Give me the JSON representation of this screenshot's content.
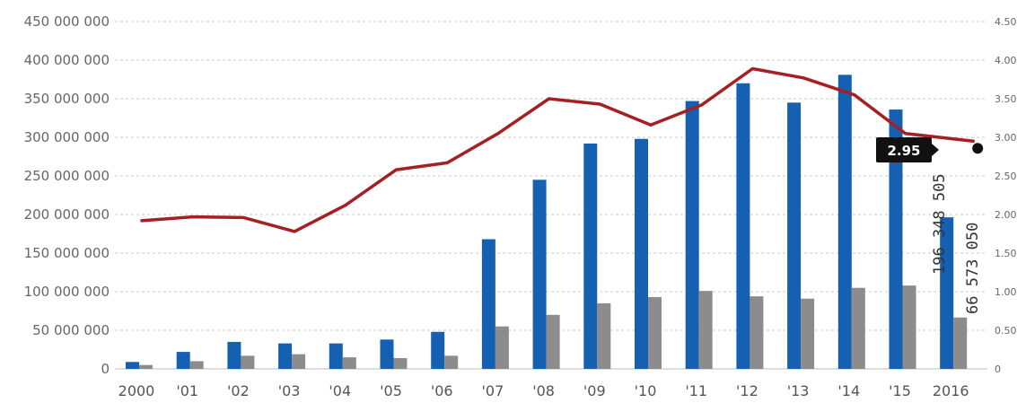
{
  "colors": {
    "series_a": "#1560b0",
    "series_b": "#8c8c8c",
    "line": "#a61f23",
    "grid": "#c9c9c9",
    "callout_bg": "#111111"
  },
  "chart_data": {
    "type": "bar",
    "categories": [
      "2000",
      "'01",
      "'02",
      "'03",
      "'04",
      "'05",
      "'06",
      "'07",
      "'08",
      "'09",
      "'10",
      "'11",
      "'12",
      "'13",
      "'14",
      "'15",
      "2016"
    ],
    "ylim": [
      0,
      450000000
    ],
    "y2lim": [
      0,
      4.5
    ],
    "yticks": [
      "0",
      "50 000 000",
      "100 000 000",
      "150 000 000",
      "200 000 000",
      "250 000 000",
      "300 000 000",
      "350 000 000",
      "400 000 000",
      "450 000 000"
    ],
    "y2ticks": [
      "0",
      "0.50",
      "1.00",
      "1.50",
      "2.00",
      "2.50",
      "3.00",
      "3.50",
      "4.00",
      "4.50"
    ],
    "grid": true,
    "series": [
      {
        "type": "bar",
        "axis": "left",
        "values": [
          9000000,
          22000000,
          35000000,
          33000000,
          33000000,
          38000000,
          48000000,
          168000000,
          245000000,
          292000000,
          298000000,
          347000000,
          370000000,
          345000000,
          381000000,
          336000000,
          196348505
        ]
      },
      {
        "type": "bar",
        "axis": "left",
        "values": [
          5000000,
          10000000,
          17000000,
          19000000,
          15000000,
          14000000,
          17000000,
          55000000,
          70000000,
          85000000,
          93000000,
          101000000,
          94000000,
          91000000,
          105000000,
          108000000,
          66573050
        ]
      },
      {
        "type": "line",
        "axis": "right",
        "values": [
          1.92,
          1.97,
          1.96,
          1.78,
          2.12,
          2.58,
          2.67,
          3.05,
          3.5,
          3.43,
          3.16,
          3.42,
          3.89,
          3.77,
          3.55,
          3.05,
          2.95
        ]
      }
    ],
    "annotations": {
      "bar_a_last": "196 348 505",
      "bar_b_last": "66 573 050",
      "line_last": "2.95"
    }
  }
}
